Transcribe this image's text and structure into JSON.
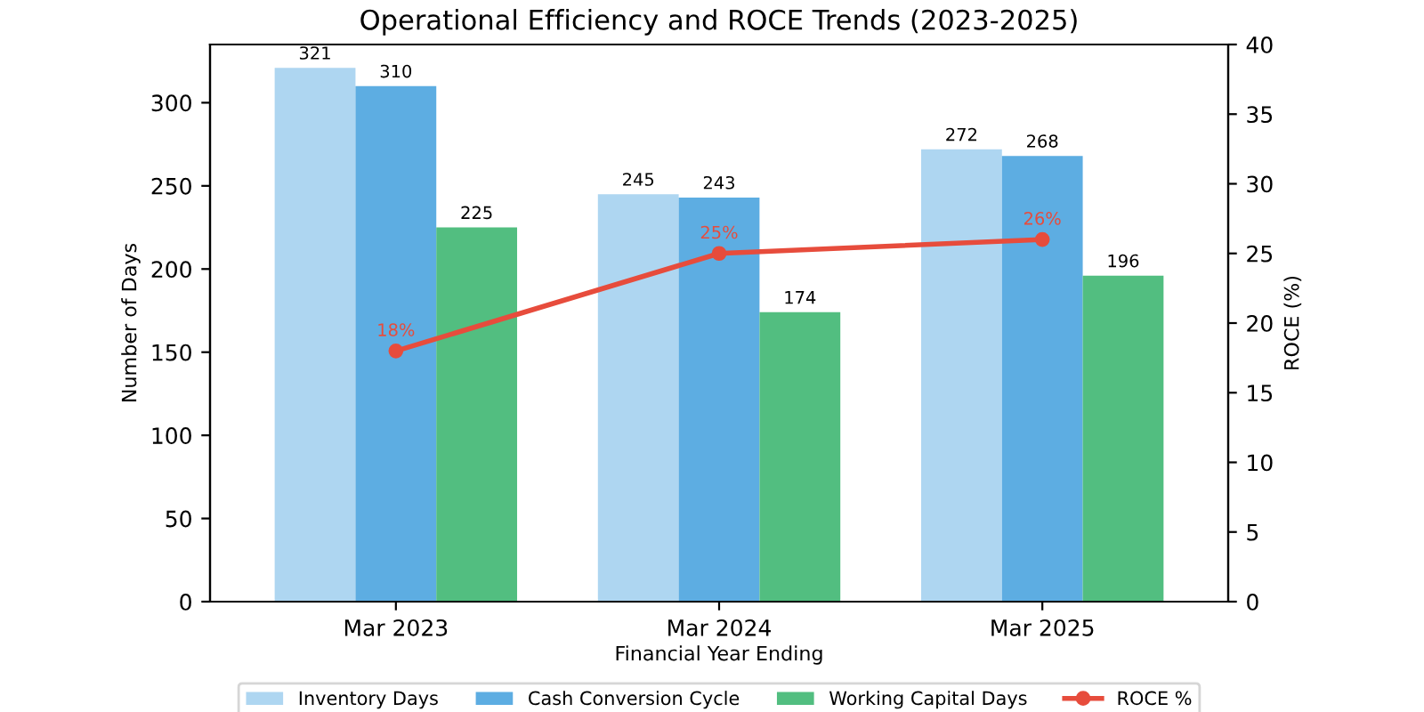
{
  "chart_data": {
    "type": "bar",
    "title": "Operational Efficiency and ROCE Trends (2023-2025)",
    "xlabel": "Financial Year Ending",
    "ylabel": "Number of Days",
    "y2label": "ROCE (%)",
    "categories": [
      "Mar 2023",
      "Mar 2024",
      "Mar 2025"
    ],
    "series": [
      {
        "name": "Inventory Days",
        "color": "#aed6f1",
        "values": [
          321,
          245,
          272
        ]
      },
      {
        "name": "Cash Conversion Cycle",
        "color": "#5dade2",
        "values": [
          310,
          243,
          268
        ]
      },
      {
        "name": "Working Capital Days",
        "color": "#52be80",
        "values": [
          225,
          174,
          196
        ]
      },
      {
        "name": "ROCE %",
        "type": "line",
        "axis": "y2",
        "color": "#e74c3c",
        "values": [
          18,
          25,
          26
        ],
        "value_labels": [
          "18%",
          "25%",
          "26%"
        ],
        "marker": "circle",
        "line_style": "solid"
      }
    ],
    "ylim": [
      0,
      335
    ],
    "yticks": [
      0,
      50,
      100,
      150,
      200,
      250,
      300
    ],
    "y2lim": [
      0,
      40
    ],
    "y2ticks": [
      0,
      5,
      10,
      15,
      20,
      25,
      30,
      35,
      40
    ],
    "data_labels": true,
    "legend": "bottom",
    "grid": false
  }
}
